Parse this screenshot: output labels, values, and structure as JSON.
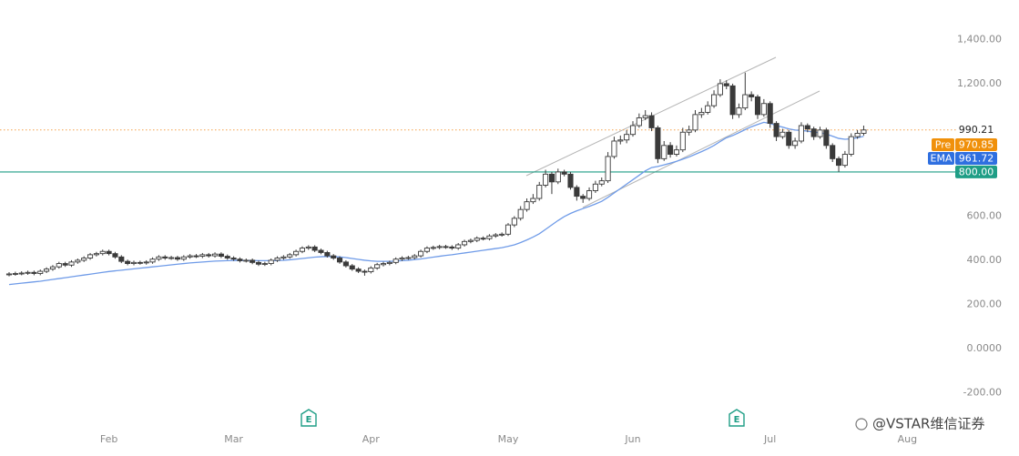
{
  "chart_data": {
    "type": "candlestick",
    "categories": [
      null,
      null,
      null,
      null,
      null,
      null,
      null,
      null,
      null,
      null,
      null,
      null,
      null,
      null,
      null,
      null,
      "Feb",
      null,
      null,
      null,
      null,
      null,
      null,
      null,
      null,
      null,
      null,
      null,
      null,
      null,
      null,
      null,
      null,
      null,
      null,
      null,
      "Mar",
      null,
      null,
      null,
      null,
      null,
      null,
      null,
      null,
      null,
      null,
      null,
      null,
      null,
      null,
      null,
      null,
      null,
      null,
      null,
      null,
      null,
      "Apr",
      null,
      null,
      null,
      null,
      null,
      null,
      null,
      null,
      null,
      null,
      null,
      null,
      null,
      null,
      null,
      null,
      null,
      null,
      null,
      null,
      null,
      "May",
      null,
      null,
      null,
      null,
      null,
      null,
      null,
      null,
      null,
      null,
      null,
      null,
      null,
      null,
      null,
      null,
      null,
      null,
      null,
      "Jun",
      null,
      null,
      null,
      null,
      null,
      null,
      null,
      null,
      null,
      null,
      null,
      null,
      null,
      null,
      null,
      null,
      null,
      null,
      null,
      null,
      null,
      "Jul",
      null,
      null,
      null,
      null,
      null,
      null,
      null,
      null,
      null,
      null,
      null,
      null,
      null,
      null,
      null,
      null,
      null,
      null,
      null,
      null,
      null,
      "Aug"
    ],
    "open": [
      335,
      338,
      340,
      342,
      345,
      340,
      350,
      360,
      370,
      385,
      378,
      392,
      400,
      410,
      425,
      430,
      440,
      430,
      415,
      395,
      385,
      390,
      388,
      392,
      405,
      415,
      410,
      412,
      405,
      415,
      420,
      418,
      425,
      420,
      428,
      418,
      410,
      405,
      398,
      400,
      390,
      382,
      385,
      400,
      410,
      415,
      425,
      440,
      455,
      460,
      445,
      435,
      420,
      410,
      392,
      375,
      360,
      350,
      348,
      365,
      380,
      385,
      390,
      405,
      410,
      412,
      420,
      440,
      455,
      458,
      462,
      460,
      455,
      470,
      485,
      490,
      500,
      498,
      510,
      515,
      518,
      560,
      590,
      630,
      665,
      680,
      740,
      790,
      755,
      800,
      790,
      730,
      690,
      680,
      715,
      745,
      760,
      870,
      940,
      945,
      970,
      1010,
      1045,
      1055,
      1000,
      860,
      920,
      880,
      900,
      980,
      990,
      1060,
      1070,
      1100,
      1150,
      1200,
      1190,
      1060,
      1090,
      1150,
      1140,
      1060,
      1110,
      1020,
      960,
      980,
      920,
      940,
      1010,
      995,
      960,
      990,
      920,
      860,
      830,
      880,
      960,
      975,
      null,
      null,
      null,
      null,
      null,
      null,
      null
    ],
    "high": [
      346,
      348,
      350,
      353,
      353,
      358,
      368,
      378,
      393,
      393,
      400,
      408,
      418,
      433,
      438,
      448,
      448,
      438,
      423,
      403,
      398,
      398,
      400,
      413,
      423,
      423,
      420,
      420,
      423,
      428,
      428,
      433,
      433,
      436,
      436,
      426,
      418,
      413,
      408,
      408,
      398,
      393,
      408,
      418,
      423,
      433,
      448,
      463,
      468,
      468,
      453,
      443,
      428,
      418,
      400,
      383,
      368,
      358,
      373,
      388,
      393,
      398,
      413,
      418,
      420,
      428,
      448,
      463,
      466,
      470,
      470,
      468,
      478,
      493,
      498,
      508,
      508,
      518,
      523,
      526,
      568,
      600,
      645,
      680,
      700,
      755,
      810,
      800,
      815,
      810,
      800,
      740,
      700,
      730,
      760,
      775,
      890,
      960,
      965,
      990,
      1030,
      1065,
      1080,
      1070,
      1010,
      940,
      935,
      920,
      1000,
      1010,
      1080,
      1090,
      1120,
      1170,
      1220,
      1215,
      1200,
      1110,
      1250,
      1165,
      1150,
      1130,
      1120,
      1030,
      995,
      990,
      955,
      1025,
      1020,
      1005,
      1005,
      1000,
      930,
      870,
      895,
      975,
      990,
      1010,
      null,
      null,
      null,
      null,
      null,
      null,
      null
    ],
    "low": [
      327,
      330,
      332,
      334,
      332,
      332,
      342,
      352,
      362,
      370,
      370,
      384,
      392,
      402,
      417,
      422,
      422,
      407,
      387,
      377,
      377,
      380,
      380,
      384,
      397,
      402,
      402,
      397,
      397,
      407,
      410,
      410,
      412,
      412,
      410,
      402,
      397,
      390,
      390,
      382,
      374,
      374,
      377,
      392,
      402,
      407,
      417,
      432,
      447,
      437,
      427,
      412,
      402,
      384,
      367,
      352,
      342,
      330,
      340,
      357,
      372,
      377,
      382,
      397,
      402,
      404,
      412,
      432,
      447,
      450,
      452,
      447,
      447,
      462,
      477,
      482,
      490,
      490,
      502,
      507,
      510,
      550,
      580,
      620,
      655,
      670,
      730,
      700,
      745,
      780,
      720,
      670,
      660,
      670,
      705,
      735,
      750,
      860,
      925,
      930,
      960,
      1000,
      1035,
      985,
      840,
      850,
      865,
      870,
      890,
      965,
      980,
      1045,
      1060,
      1090,
      1140,
      1175,
      1040,
      1045,
      1080,
      1120,
      1040,
      1050,
      1000,
      940,
      950,
      905,
      905,
      930,
      980,
      945,
      950,
      905,
      845,
      800,
      820,
      870,
      950,
      965,
      null,
      null,
      null,
      null,
      null,
      null,
      null
    ],
    "close": [
      338,
      340,
      342,
      345,
      340,
      350,
      360,
      370,
      385,
      378,
      392,
      400,
      410,
      425,
      430,
      440,
      430,
      415,
      395,
      385,
      390,
      388,
      392,
      405,
      415,
      410,
      412,
      405,
      415,
      420,
      418,
      425,
      420,
      428,
      418,
      410,
      405,
      398,
      400,
      390,
      382,
      385,
      400,
      410,
      415,
      425,
      440,
      455,
      460,
      445,
      435,
      420,
      410,
      392,
      375,
      360,
      350,
      348,
      365,
      380,
      385,
      390,
      405,
      410,
      412,
      420,
      440,
      455,
      458,
      462,
      460,
      455,
      470,
      485,
      490,
      500,
      498,
      510,
      515,
      518,
      560,
      590,
      630,
      665,
      680,
      740,
      790,
      755,
      800,
      790,
      730,
      690,
      680,
      715,
      745,
      760,
      870,
      940,
      945,
      970,
      1010,
      1045,
      1055,
      1000,
      860,
      920,
      880,
      900,
      980,
      990,
      1060,
      1070,
      1100,
      1150,
      1200,
      1190,
      1060,
      1090,
      1150,
      1140,
      1060,
      1110,
      1020,
      960,
      980,
      920,
      940,
      1010,
      995,
      960,
      990,
      920,
      860,
      830,
      880,
      960,
      975,
      990.21,
      null,
      null,
      null,
      null,
      null,
      null,
      null
    ],
    "up_color": "#ffffff",
    "down_color": "#3a3a3a",
    "outline_color": "#3a3a3a",
    "series": [
      {
        "name": "EMA",
        "color": "#6f9be8",
        "values": [
          290,
          293,
          296,
          299,
          302,
          305,
          309,
          313,
          317,
          321,
          325,
          329,
          333,
          337,
          341,
          345,
          349,
          352,
          355,
          358,
          361,
          364,
          367,
          370,
          373,
          376,
          379,
          382,
          385,
          388,
          390,
          392,
          394,
          396,
          397,
          398,
          399,
          399,
          399,
          399,
          398,
          398,
          398,
          399,
          400,
          402,
          405,
          408,
          411,
          414,
          416,
          417,
          417,
          415,
          412,
          408,
          404,
          400,
          397,
          395,
          395,
          395,
          396,
          398,
          400,
          403,
          406,
          410,
          414,
          418,
          422,
          425,
          429,
          433,
          437,
          441,
          445,
          449,
          453,
          457,
          463,
          470,
          480,
          492,
          505,
          520,
          540,
          560,
          580,
          598,
          612,
          624,
          634,
          644,
          655,
          667,
          685,
          705,
          725,
          745,
          765,
          785,
          805,
          820,
          825,
          832,
          840,
          848,
          858,
          868,
          880,
          892,
          905,
          920,
          938,
          955,
          965,
          978,
          992,
          1005,
          1015,
          1025,
          1020,
          1010,
          1003,
          995,
          990,
          988,
          985,
          980,
          978,
          972,
          962,
          952,
          948,
          950,
          955,
          961.72,
          null,
          null,
          null,
          null,
          null,
          null,
          null
        ]
      }
    ],
    "ylim": [
      -359,
      1579
    ],
    "yticks": [
      {
        "value": -200,
        "label": "-200.00"
      },
      {
        "value": 0,
        "label": "0.0000"
      },
      {
        "value": 200,
        "label": "200.00"
      },
      {
        "value": 400,
        "label": "400.00"
      },
      {
        "value": 600,
        "label": "600.00"
      },
      {
        "value": 1200,
        "label": "1,200.00"
      },
      {
        "value": 1400,
        "label": "1,400.00"
      }
    ],
    "price_line_color": "#f5a24b",
    "premarket": {
      "name": "Pre",
      "value": 970.85,
      "color": "#f0900a"
    },
    "horizontal_line": {
      "value": 800,
      "label": "800.00",
      "color": "#1f9e86"
    },
    "earnings": [
      "E",
      "E"
    ],
    "grid": false
  },
  "watermark": "@VSTAR维信证券"
}
